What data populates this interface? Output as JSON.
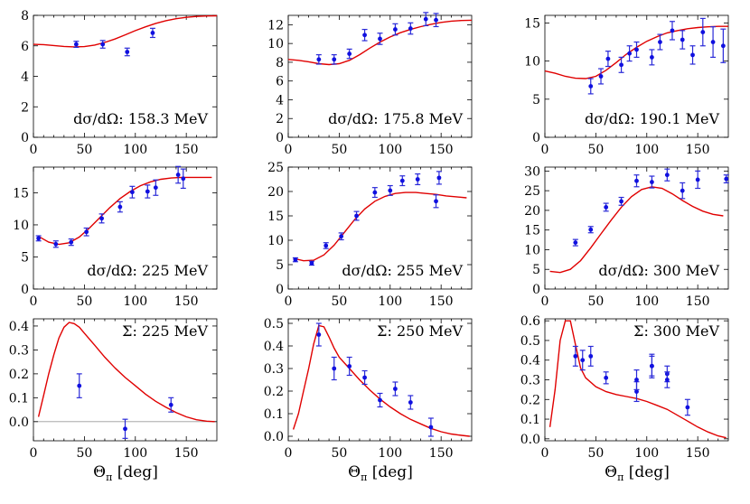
{
  "xlabel": "Θ_π [deg]",
  "xlabel_main": "Θ",
  "xlabel_sub": "π",
  "xlabel_unit": "[deg]",
  "colors": {
    "theory_curve": "#e00000",
    "data_points": "#1010e0",
    "zero_line": "#9a9a9a"
  },
  "chart_data": [
    {
      "type": "scatter",
      "label": "dσ/dΩ:  158.3 MeV",
      "xlim": [
        0,
        180
      ],
      "ylim": [
        0,
        8
      ],
      "xticks": [
        0,
        50,
        100,
        150
      ],
      "yticks": [
        0,
        2,
        4,
        6,
        8
      ],
      "points": [
        [
          42,
          6.1,
          0.2
        ],
        [
          68,
          6.1,
          0.25
        ],
        [
          92,
          5.6,
          0.25
        ],
        [
          117,
          6.85,
          0.3
        ]
      ],
      "curve": [
        [
          0,
          6.1
        ],
        [
          10,
          6.08
        ],
        [
          20,
          6.02
        ],
        [
          30,
          5.96
        ],
        [
          40,
          5.93
        ],
        [
          50,
          5.95
        ],
        [
          60,
          6.05
        ],
        [
          70,
          6.22
        ],
        [
          80,
          6.45
        ],
        [
          90,
          6.72
        ],
        [
          100,
          7.0
        ],
        [
          110,
          7.25
        ],
        [
          120,
          7.47
        ],
        [
          130,
          7.65
        ],
        [
          140,
          7.78
        ],
        [
          150,
          7.87
        ],
        [
          160,
          7.93
        ],
        [
          170,
          7.96
        ],
        [
          180,
          7.97
        ]
      ]
    },
    {
      "type": "scatter",
      "label": "dσ/dΩ:  175.8 MeV",
      "xlim": [
        0,
        180
      ],
      "ylim": [
        0,
        13
      ],
      "xticks": [
        0,
        50,
        100,
        150
      ],
      "yticks": [
        0,
        2,
        4,
        6,
        8,
        10,
        12
      ],
      "points": [
        [
          30,
          8.3,
          0.5
        ],
        [
          45,
          8.3,
          0.5
        ],
        [
          60,
          8.9,
          0.5
        ],
        [
          75,
          10.9,
          0.6
        ],
        [
          90,
          10.5,
          0.6
        ],
        [
          105,
          11.5,
          0.6
        ],
        [
          120,
          11.6,
          0.6
        ],
        [
          135,
          12.6,
          0.7
        ],
        [
          145,
          12.5,
          0.7
        ]
      ],
      "curve": [
        [
          0,
          8.3
        ],
        [
          10,
          8.2
        ],
        [
          20,
          8.05
        ],
        [
          30,
          7.85
        ],
        [
          40,
          7.75
        ],
        [
          50,
          7.85
        ],
        [
          60,
          8.2
        ],
        [
          70,
          8.8
        ],
        [
          80,
          9.5
        ],
        [
          90,
          10.15
        ],
        [
          100,
          10.7
        ],
        [
          110,
          11.15
        ],
        [
          120,
          11.5
        ],
        [
          130,
          11.8
        ],
        [
          140,
          12.05
        ],
        [
          150,
          12.25
        ],
        [
          160,
          12.38
        ],
        [
          170,
          12.45
        ],
        [
          180,
          12.48
        ]
      ]
    },
    {
      "type": "scatter",
      "label": "dσ/dΩ:  190.1 MeV",
      "xlim": [
        0,
        180
      ],
      "ylim": [
        0,
        16
      ],
      "xticks": [
        0,
        50,
        100,
        150
      ],
      "yticks": [
        0,
        5,
        10,
        15
      ],
      "points": [
        [
          45,
          6.7,
          1.0
        ],
        [
          55,
          8.0,
          1.0
        ],
        [
          62,
          10.3,
          1.0
        ],
        [
          75,
          9.5,
          1.0
        ],
        [
          83,
          11.0,
          1.0
        ],
        [
          90,
          11.5,
          1.0
        ],
        [
          105,
          10.5,
          1.0
        ],
        [
          113,
          12.5,
          1.0
        ],
        [
          125,
          14.0,
          1.2
        ],
        [
          135,
          12.8,
          1.2
        ],
        [
          145,
          10.8,
          1.2
        ],
        [
          155,
          13.8,
          1.8
        ],
        [
          165,
          12.5,
          2.0
        ],
        [
          175,
          12.0,
          2.2
        ]
      ],
      "curve": [
        [
          0,
          8.7
        ],
        [
          10,
          8.4
        ],
        [
          20,
          8.0
        ],
        [
          30,
          7.75
        ],
        [
          40,
          7.7
        ],
        [
          50,
          8.0
        ],
        [
          60,
          8.8
        ],
        [
          70,
          9.8
        ],
        [
          80,
          10.9
        ],
        [
          90,
          11.8
        ],
        [
          100,
          12.6
        ],
        [
          110,
          13.2
        ],
        [
          120,
          13.7
        ],
        [
          130,
          14.0
        ],
        [
          140,
          14.25
        ],
        [
          150,
          14.4
        ],
        [
          160,
          14.5
        ],
        [
          170,
          14.55
        ],
        [
          180,
          14.55
        ]
      ]
    },
    {
      "type": "scatter",
      "label": "dσ/dΩ:  225 MeV",
      "xlim": [
        0,
        180
      ],
      "ylim": [
        0,
        19
      ],
      "xticks": [
        0,
        50,
        100,
        150
      ],
      "yticks": [
        0,
        5,
        10,
        15
      ],
      "points": [
        [
          5,
          7.9,
          0.4
        ],
        [
          22,
          7.0,
          0.5
        ],
        [
          37,
          7.3,
          0.5
        ],
        [
          52,
          8.9,
          0.6
        ],
        [
          67,
          11.0,
          0.7
        ],
        [
          85,
          12.8,
          0.8
        ],
        [
          97,
          15.1,
          0.9
        ],
        [
          112,
          15.2,
          1.0
        ],
        [
          120,
          15.8,
          1.2
        ],
        [
          142,
          17.8,
          1.3
        ],
        [
          147,
          17.2,
          1.5
        ]
      ],
      "curve": [
        [
          5,
          8.2
        ],
        [
          15,
          7.3
        ],
        [
          25,
          6.95
        ],
        [
          35,
          7.2
        ],
        [
          45,
          8.1
        ],
        [
          55,
          9.5
        ],
        [
          65,
          11.1
        ],
        [
          75,
          12.7
        ],
        [
          85,
          14.1
        ],
        [
          95,
          15.2
        ],
        [
          105,
          16.1
        ],
        [
          115,
          16.7
        ],
        [
          125,
          17.1
        ],
        [
          135,
          17.3
        ],
        [
          145,
          17.4
        ],
        [
          160,
          17.4
        ],
        [
          175,
          17.4
        ]
      ]
    },
    {
      "type": "scatter",
      "label": "dσ/dΩ:  255 MeV",
      "xlim": [
        0,
        180
      ],
      "ylim": [
        0,
        25
      ],
      "xticks": [
        0,
        50,
        100,
        150
      ],
      "yticks": [
        0,
        5,
        10,
        15,
        20,
        25
      ],
      "points": [
        [
          7,
          6.0,
          0.4
        ],
        [
          23,
          5.3,
          0.4
        ],
        [
          37,
          8.9,
          0.6
        ],
        [
          52,
          10.8,
          0.7
        ],
        [
          67,
          15.0,
          0.9
        ],
        [
          85,
          19.8,
          1.0
        ],
        [
          100,
          20.2,
          1.0
        ],
        [
          112,
          22.2,
          1.0
        ],
        [
          127,
          22.5,
          1.1
        ],
        [
          145,
          18.0,
          1.3
        ],
        [
          148,
          22.8,
          1.3
        ]
      ],
      "curve": [
        [
          5,
          6.3
        ],
        [
          15,
          5.8
        ],
        [
          25,
          5.9
        ],
        [
          35,
          7.0
        ],
        [
          45,
          9.0
        ],
        [
          55,
          11.6
        ],
        [
          65,
          14.2
        ],
        [
          75,
          16.4
        ],
        [
          85,
          18.0
        ],
        [
          95,
          19.0
        ],
        [
          105,
          19.6
        ],
        [
          115,
          19.8
        ],
        [
          125,
          19.8
        ],
        [
          135,
          19.6
        ],
        [
          145,
          19.4
        ],
        [
          155,
          19.1
        ],
        [
          165,
          18.9
        ],
        [
          175,
          18.7
        ]
      ]
    },
    {
      "type": "scatter",
      "label": "dσ/dΩ:  300 MeV",
      "xlim": [
        0,
        180
      ],
      "ylim": [
        0,
        31
      ],
      "xticks": [
        0,
        50,
        100,
        150
      ],
      "yticks": [
        0,
        5,
        10,
        15,
        20,
        25,
        30
      ],
      "points": [
        [
          30,
          11.8,
          0.8
        ],
        [
          45,
          15.1,
          0.8
        ],
        [
          60,
          20.8,
          1.0
        ],
        [
          75,
          22.3,
          1.0
        ],
        [
          90,
          27.5,
          1.5
        ],
        [
          105,
          27.2,
          1.5
        ],
        [
          120,
          29.0,
          1.5
        ],
        [
          135,
          25.0,
          2.0
        ],
        [
          150,
          27.8,
          2.2
        ],
        [
          178,
          28.0,
          1.0
        ]
      ],
      "curve": [
        [
          5,
          4.5
        ],
        [
          15,
          4.2
        ],
        [
          25,
          5.0
        ],
        [
          35,
          7.2
        ],
        [
          45,
          10.5
        ],
        [
          55,
          14.0
        ],
        [
          65,
          17.5
        ],
        [
          75,
          20.8
        ],
        [
          85,
          23.5
        ],
        [
          95,
          25.3
        ],
        [
          105,
          26.0
        ],
        [
          115,
          25.6
        ],
        [
          125,
          24.2
        ],
        [
          135,
          22.5
        ],
        [
          145,
          21.0
        ],
        [
          155,
          19.8
        ],
        [
          165,
          19.0
        ],
        [
          175,
          18.6
        ]
      ]
    },
    {
      "type": "scatter",
      "label": "Σ:  225 MeV",
      "xlim": [
        0,
        180
      ],
      "ylim": [
        -0.08,
        0.43
      ],
      "xticks": [
        0,
        50,
        100,
        150
      ],
      "yticks": [
        0.0,
        0.1,
        0.2,
        0.3,
        0.4
      ],
      "ytick_labels": [
        "0.0",
        "0.1",
        "0.2",
        "0.3",
        "0.4"
      ],
      "zero_line": true,
      "points": [
        [
          45,
          0.15,
          0.05
        ],
        [
          90,
          -0.03,
          0.04
        ],
        [
          135,
          0.07,
          0.03
        ]
      ],
      "curve": [
        [
          5,
          0.02
        ],
        [
          10,
          0.11
        ],
        [
          15,
          0.2
        ],
        [
          20,
          0.28
        ],
        [
          25,
          0.35
        ],
        [
          30,
          0.395
        ],
        [
          35,
          0.415
        ],
        [
          40,
          0.41
        ],
        [
          45,
          0.395
        ],
        [
          50,
          0.37
        ],
        [
          60,
          0.32
        ],
        [
          70,
          0.27
        ],
        [
          80,
          0.225
        ],
        [
          90,
          0.185
        ],
        [
          100,
          0.15
        ],
        [
          110,
          0.115
        ],
        [
          120,
          0.085
        ],
        [
          130,
          0.06
        ],
        [
          140,
          0.038
        ],
        [
          150,
          0.02
        ],
        [
          160,
          0.008
        ],
        [
          170,
          0.002
        ],
        [
          178,
          0.0
        ]
      ]
    },
    {
      "type": "scatter",
      "label": "Σ:  250 MeV",
      "xlim": [
        0,
        180
      ],
      "ylim": [
        -0.02,
        0.52
      ],
      "xticks": [
        0,
        50,
        100,
        150
      ],
      "yticks": [
        0.0,
        0.1,
        0.2,
        0.3,
        0.4,
        0.5
      ],
      "ytick_labels": [
        "0.0",
        "0.1",
        "0.2",
        "0.3",
        "0.4",
        "0.5"
      ],
      "points": [
        [
          30,
          0.45,
          0.05
        ],
        [
          45,
          0.3,
          0.05
        ],
        [
          60,
          0.31,
          0.04
        ],
        [
          75,
          0.26,
          0.03
        ],
        [
          90,
          0.16,
          0.03
        ],
        [
          105,
          0.21,
          0.03
        ],
        [
          120,
          0.15,
          0.03
        ],
        [
          140,
          0.04,
          0.04
        ]
      ],
      "curve": [
        [
          5,
          0.03
        ],
        [
          10,
          0.1
        ],
        [
          15,
          0.2
        ],
        [
          20,
          0.3
        ],
        [
          25,
          0.41
        ],
        [
          30,
          0.49
        ],
        [
          35,
          0.485
        ],
        [
          40,
          0.44
        ],
        [
          45,
          0.39
        ],
        [
          50,
          0.35
        ],
        [
          60,
          0.3
        ],
        [
          70,
          0.25
        ],
        [
          80,
          0.205
        ],
        [
          90,
          0.165
        ],
        [
          100,
          0.13
        ],
        [
          110,
          0.1
        ],
        [
          120,
          0.075
        ],
        [
          130,
          0.055
        ],
        [
          140,
          0.035
        ],
        [
          150,
          0.02
        ],
        [
          160,
          0.01
        ],
        [
          170,
          0.004
        ],
        [
          178,
          0.0
        ]
      ]
    },
    {
      "type": "scatter",
      "label": "Σ:  300 MeV",
      "xlim": [
        0,
        180
      ],
      "ylim": [
        -0.01,
        0.61
      ],
      "xticks": [
        0,
        50,
        100,
        150
      ],
      "yticks": [
        0.0,
        0.1,
        0.2,
        0.3,
        0.4,
        0.5,
        0.6
      ],
      "ytick_labels": [
        "0.0",
        "0.1",
        "0.2",
        "0.3",
        "0.4",
        "0.5",
        "0.6"
      ],
      "points": [
        [
          30,
          0.42,
          0.05
        ],
        [
          37,
          0.4,
          0.05
        ],
        [
          45,
          0.42,
          0.05
        ],
        [
          60,
          0.31,
          0.03
        ],
        [
          90,
          0.24,
          0.05
        ],
        [
          90,
          0.3,
          0.05
        ],
        [
          105,
          0.37,
          0.05
        ],
        [
          105,
          0.37,
          0.06
        ],
        [
          120,
          0.33,
          0.04
        ],
        [
          120,
          0.3,
          0.04
        ],
        [
          140,
          0.16,
          0.04
        ]
      ],
      "curve": [
        [
          5,
          0.06
        ],
        [
          10,
          0.25
        ],
        [
          15,
          0.5
        ],
        [
          20,
          0.6
        ],
        [
          25,
          0.6
        ],
        [
          30,
          0.48
        ],
        [
          35,
          0.36
        ],
        [
          40,
          0.31
        ],
        [
          50,
          0.265
        ],
        [
          60,
          0.24
        ],
        [
          70,
          0.225
        ],
        [
          80,
          0.215
        ],
        [
          90,
          0.205
        ],
        [
          100,
          0.19
        ],
        [
          110,
          0.17
        ],
        [
          120,
          0.15
        ],
        [
          130,
          0.12
        ],
        [
          140,
          0.09
        ],
        [
          150,
          0.06
        ],
        [
          160,
          0.035
        ],
        [
          170,
          0.015
        ],
        [
          178,
          0.005
        ]
      ]
    }
  ]
}
